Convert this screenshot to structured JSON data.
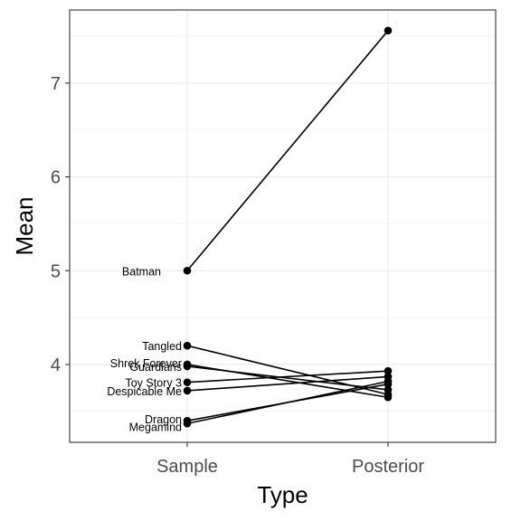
{
  "chart_data": {
    "type": "line",
    "xlabel": "Type",
    "ylabel": "Mean",
    "categories": [
      "Sample",
      "Posterior"
    ],
    "ylim": [
      3.17,
      7.78
    ],
    "yticks": [
      4,
      5,
      6,
      7
    ],
    "grid": true,
    "legend": "none",
    "series": [
      {
        "name": "Batman",
        "values": [
          5.0,
          7.56
        ]
      },
      {
        "name": "Tangled",
        "values": [
          4.2,
          3.68
        ]
      },
      {
        "name": "Shrek Forever",
        "values": [
          4.0,
          3.65
        ]
      },
      {
        "name": "Guardians",
        "values": [
          3.98,
          3.73
        ]
      },
      {
        "name": "Toy Story 3",
        "values": [
          3.81,
          3.93
        ]
      },
      {
        "name": "Despicable Me",
        "values": [
          3.72,
          3.87
        ]
      },
      {
        "name": "Dragon",
        "values": [
          3.4,
          3.79
        ]
      },
      {
        "name": "Megamind",
        "values": [
          3.37,
          3.82
        ]
      }
    ]
  }
}
